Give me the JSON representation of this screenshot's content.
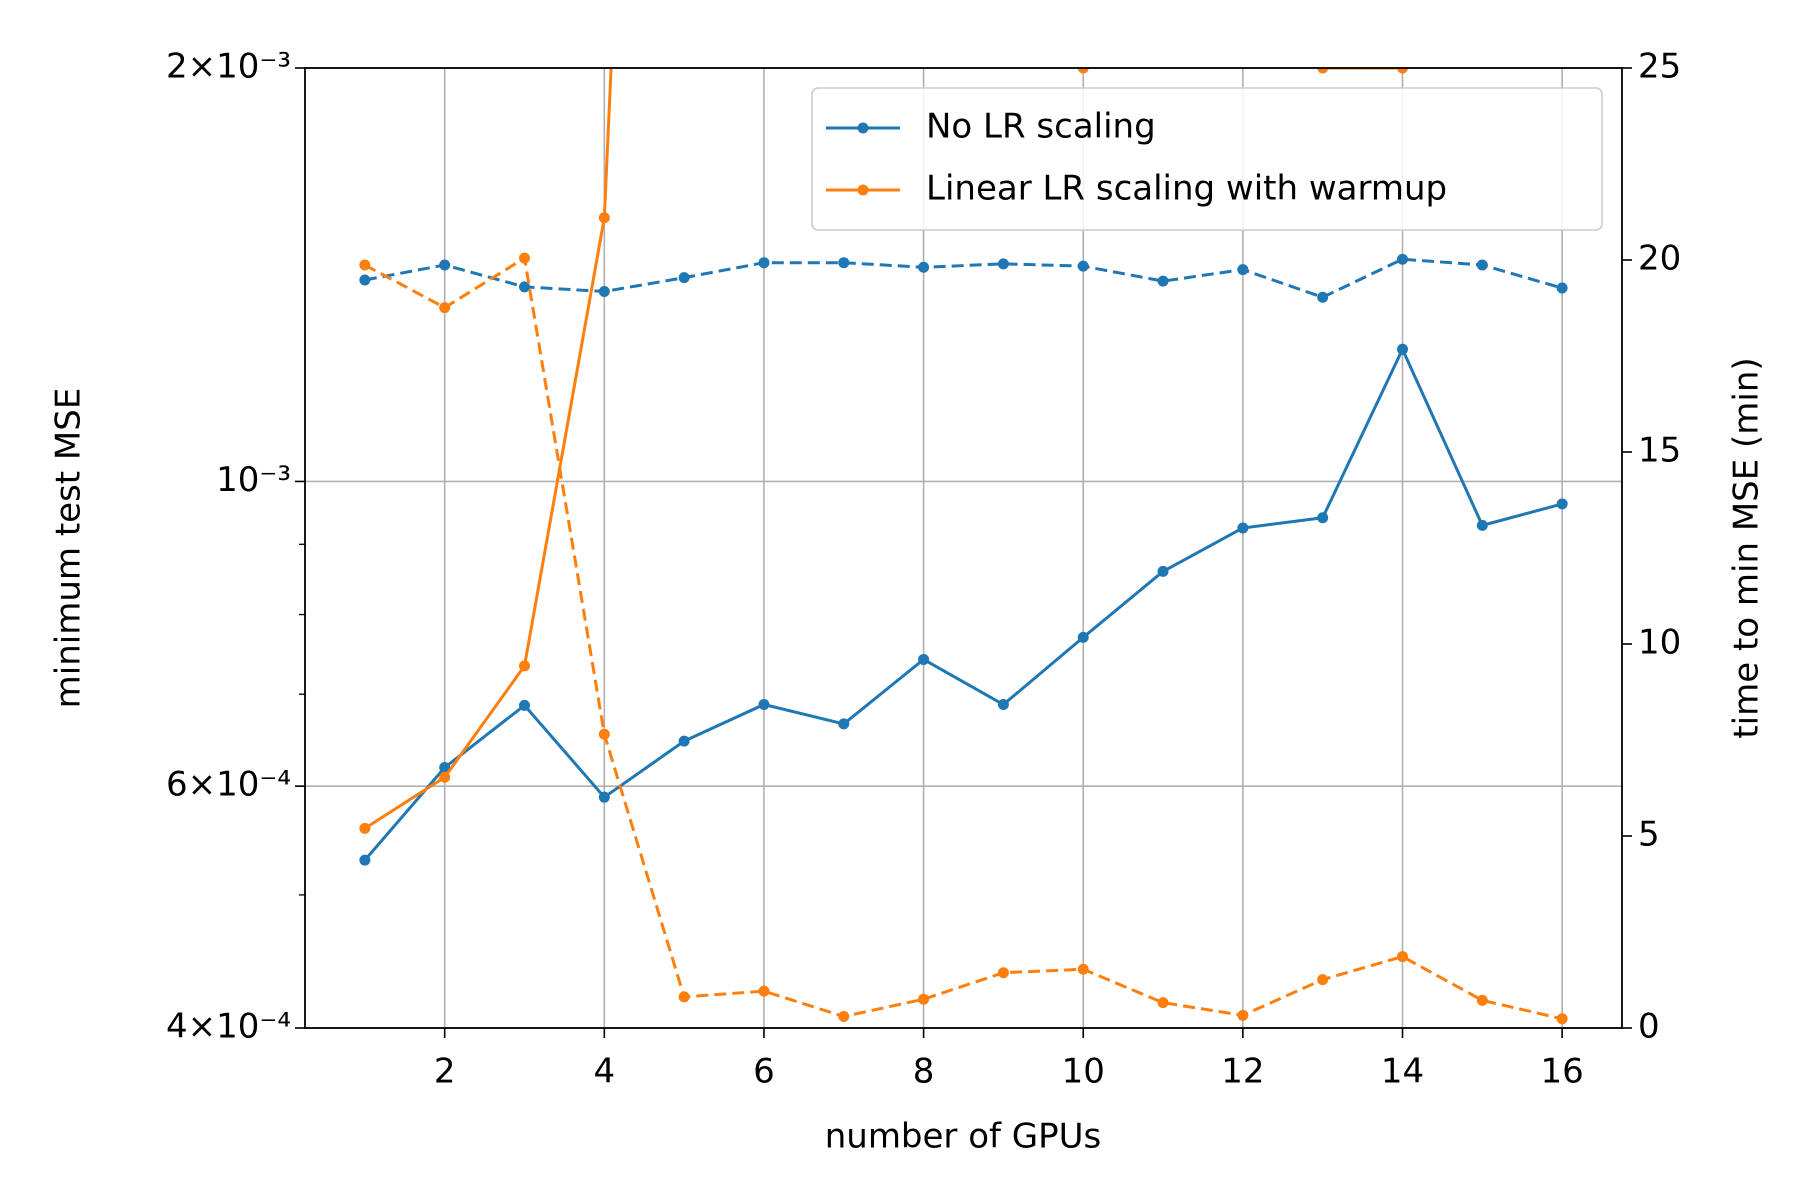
{
  "chart_data": {
    "type": "line",
    "xlabel": "number of GPUs",
    "ylabel": "minimum test MSE",
    "y2label": "time to min MSE (min)",
    "x": [
      1,
      2,
      3,
      4,
      5,
      6,
      7,
      8,
      9,
      10,
      11,
      12,
      13,
      14,
      15,
      16
    ],
    "xlim": [
      0.25,
      16.75
    ],
    "xticks": [
      2,
      4,
      6,
      8,
      10,
      12,
      14,
      16
    ],
    "ylog": true,
    "ylim": [
      0.0004,
      0.002
    ],
    "yticks": [
      {
        "value": 0.0004,
        "label": "4×10⁻⁴"
      },
      {
        "value": 0.0006,
        "label": "6×10⁻⁴"
      },
      {
        "value": 0.001,
        "label": "10⁻³"
      },
      {
        "value": 0.002,
        "label": "2×10⁻³"
      }
    ],
    "yminorticks": [
      0.0005,
      0.0007,
      0.0008,
      0.0009
    ],
    "y2lim": [
      0,
      25
    ],
    "y2ticks": [
      0,
      5,
      10,
      15,
      20,
      25
    ],
    "grid": true,
    "legend": "upper right",
    "series": [
      {
        "name": "No LR scaling",
        "color": "#1f77b4",
        "linestyle": "solid",
        "values": [
          0.00053,
          0.000619,
          0.000687,
          0.000589,
          0.000647,
          0.000688,
          0.000666,
          0.000742,
          0.000688,
          0.00077,
          0.00086,
          0.000925,
          0.000941,
          0.001248,
          0.000929,
          0.000963
        ]
      },
      {
        "name": "Linear LR scaling with warmup",
        "color": "#ff7f0e",
        "linestyle": "solid",
        "values": [
          0.000559,
          0.000609,
          0.000734,
          0.001556,
          0.03,
          null,
          null,
          null,
          null,
          0.002,
          null,
          null,
          0.002,
          0.002,
          null,
          null
        ]
      },
      {
        "color": "#1f77b4",
        "linestyle": "dashed",
        "axis": "y2",
        "values": [
          19.48,
          19.87,
          19.3,
          19.18,
          19.54,
          19.93,
          19.93,
          19.81,
          19.9,
          19.84,
          19.45,
          19.75,
          19.03,
          20.02,
          19.87,
          19.27
        ]
      },
      {
        "color": "#ff7f0e",
        "linestyle": "dashed",
        "axis": "y2",
        "values": [
          19.87,
          18.76,
          20.05,
          7.65,
          0.81,
          0.96,
          0.3,
          0.75,
          1.44,
          1.53,
          0.66,
          0.33,
          1.26,
          1.86,
          0.72,
          0.24
        ]
      }
    ]
  }
}
